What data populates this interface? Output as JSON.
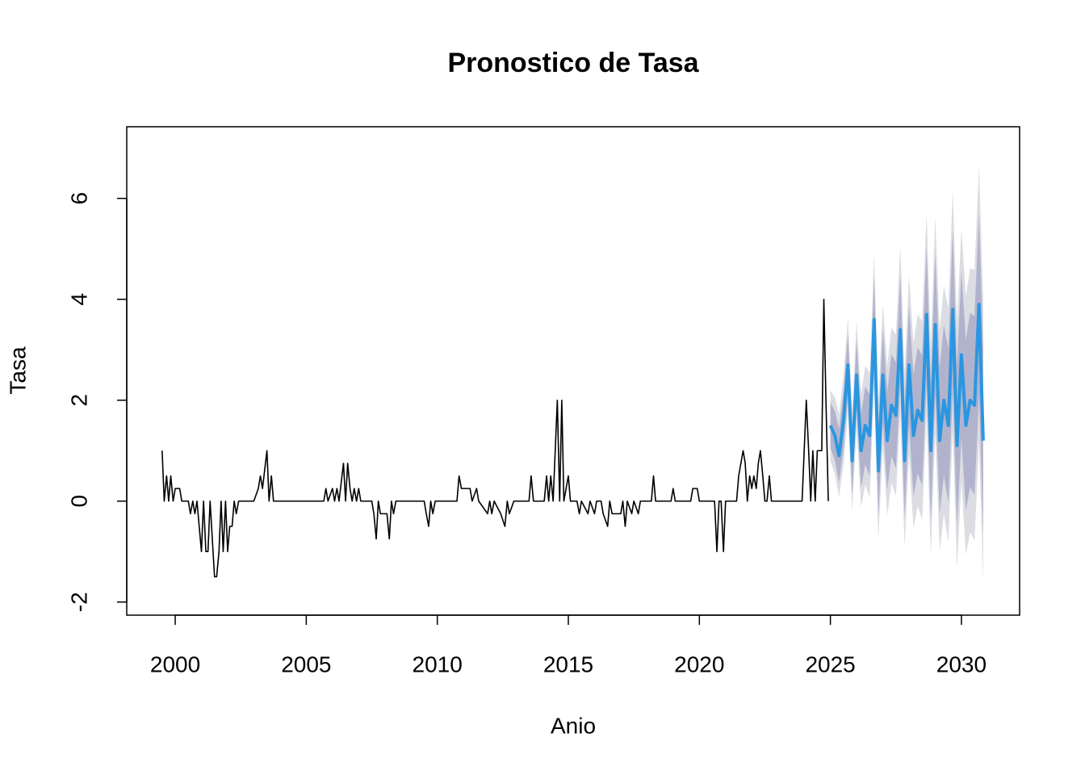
{
  "chart_data": {
    "type": "line",
    "title": "Pronostico de Tasa",
    "x_label": "Anio",
    "y_label": "Tasa",
    "xlim": [
      1998.15,
      2032.22
    ],
    "ylim": [
      -2.26,
      7.42
    ],
    "xticks": [
      2000,
      2005,
      2010,
      2015,
      2020,
      2025,
      2030
    ],
    "yticks": [
      -2,
      0,
      2,
      4,
      6
    ],
    "band_colors": [
      "#dcdce3",
      "#b1b3cd"
    ],
    "series": [
      {
        "color": "#000000",
        "x": [
          1999.5,
          1999.58,
          1999.67,
          1999.75,
          1999.83,
          1999.92,
          2000,
          2000.17,
          2000.25,
          2000.5,
          2000.58,
          2000.67,
          2000.75,
          2000.83,
          2001,
          2001.08,
          2001.17,
          2001.25,
          2001.33,
          2001.5,
          2001.58,
          2001.67,
          2001.75,
          2001.83,
          2001.92,
          2002,
          2002.08,
          2002.17,
          2002.25,
          2002.33,
          2002.42,
          2003,
          2003.17,
          2003.25,
          2003.33,
          2003.5,
          2003.58,
          2003.67,
          2003.75,
          2005.67,
          2005.75,
          2005.83,
          2006,
          2006.08,
          2006.17,
          2006.25,
          2006.42,
          2006.5,
          2006.58,
          2006.67,
          2006.75,
          2006.83,
          2006.92,
          2007,
          2007.08,
          2007.5,
          2007.58,
          2007.67,
          2007.75,
          2007.83,
          2008.08,
          2008.17,
          2008.25,
          2008.33,
          2008.42,
          2009.5,
          2009.58,
          2009.67,
          2009.75,
          2009.83,
          2009.92,
          2010.75,
          2010.83,
          2010.92,
          2011.25,
          2011.33,
          2011.5,
          2011.58,
          2011.92,
          2012,
          2012.08,
          2012.17,
          2012.42,
          2012.58,
          2012.67,
          2012.75,
          2012.92,
          2013.5,
          2013.58,
          2013.67,
          2014.08,
          2014.17,
          2014.25,
          2014.33,
          2014.42,
          2014.58,
          2014.67,
          2014.75,
          2014.83,
          2015,
          2015.08,
          2015.33,
          2015.42,
          2015.5,
          2015.75,
          2015.83,
          2016,
          2016.08,
          2016.25,
          2016.33,
          2016.5,
          2016.58,
          2016.67,
          2017,
          2017.08,
          2017.17,
          2017.25,
          2017.42,
          2017.5,
          2017.67,
          2017.75,
          2018.17,
          2018.25,
          2018.33,
          2018.92,
          2019,
          2019.08,
          2019.67,
          2019.75,
          2019.92,
          2020,
          2020.58,
          2020.67,
          2020.75,
          2020.83,
          2020.92,
          2021,
          2021.42,
          2021.5,
          2021.67,
          2021.75,
          2021.83,
          2021.92,
          2022,
          2022.08,
          2022.17,
          2022.25,
          2022.33,
          2022.42,
          2022.5,
          2022.58,
          2022.67,
          2022.75,
          2023.92,
          2024,
          2024.08,
          2024.17,
          2024.25,
          2024.33,
          2024.42,
          2024.5,
          2024.58,
          2024.67,
          2024.75,
          2024.83,
          2024.92
        ],
        "values": [
          1,
          0,
          0.5,
          0,
          0.5,
          0,
          0.25,
          0.25,
          0,
          0,
          -0.25,
          0,
          -0.25,
          0,
          -1,
          0,
          -1,
          -1,
          0,
          -1.5,
          -1.5,
          -1,
          0,
          -1,
          0,
          -1,
          -0.5,
          -0.5,
          0,
          -0.25,
          0,
          0,
          0.25,
          0.5,
          0.25,
          1,
          0,
          0.5,
          0,
          0,
          0.25,
          0,
          0.25,
          0,
          0.25,
          0,
          0.75,
          0,
          0.75,
          0.25,
          0,
          0.25,
          0,
          0.25,
          0,
          0,
          -0.25,
          -0.75,
          0,
          -0.25,
          -0.25,
          -0.75,
          0,
          -0.25,
          0,
          0,
          -0.25,
          -0.5,
          0,
          -0.25,
          0,
          0,
          0.5,
          0.25,
          0.25,
          0,
          0.25,
          0,
          -0.25,
          0,
          -0.25,
          0,
          -0.25,
          -0.5,
          0,
          -0.25,
          0,
          0,
          0.5,
          0,
          0,
          0.5,
          0,
          0.5,
          0,
          2,
          0,
          2,
          0,
          0.5,
          0,
          0,
          -0.25,
          0,
          -0.25,
          0,
          -0.25,
          0,
          0,
          -0.25,
          -0.5,
          0,
          -0.25,
          -0.25,
          0,
          -0.5,
          0,
          -0.25,
          0,
          -0.25,
          0,
          0,
          0.5,
          0,
          0,
          0.25,
          0,
          0,
          0.25,
          0.25,
          0,
          0,
          -1,
          0,
          0,
          -1,
          0,
          0,
          0.5,
          1,
          0.75,
          0,
          0.5,
          0.25,
          0.5,
          0.25,
          0.75,
          1,
          0.5,
          0,
          0,
          0.5,
          0,
          0,
          1,
          2,
          1,
          0,
          1,
          0,
          1,
          1,
          1,
          4,
          2,
          0
        ]
      },
      {
        "color": "#2b96e0",
        "x": [
          2025,
          2025.17,
          2025.33,
          2025.5,
          2025.67,
          2025.83,
          2026,
          2026.17,
          2026.33,
          2026.5,
          2026.67,
          2026.83,
          2027,
          2027.17,
          2027.33,
          2027.5,
          2027.67,
          2027.83,
          2028,
          2028.17,
          2028.33,
          2028.5,
          2028.67,
          2028.83,
          2029,
          2029.17,
          2029.33,
          2029.5,
          2029.67,
          2029.83,
          2030,
          2030.17,
          2030.33,
          2030.5,
          2030.67,
          2030.83
        ],
        "values": [
          1.5,
          1.3,
          0.9,
          1.6,
          2.7,
          0.8,
          2.5,
          1.0,
          1.5,
          1.3,
          3.6,
          0.6,
          2.5,
          1.2,
          1.9,
          1.7,
          3.4,
          0.8,
          2.7,
          1.3,
          1.8,
          1.6,
          3.7,
          1.0,
          3.5,
          1.2,
          2.0,
          1.5,
          3.8,
          1.1,
          2.9,
          1.5,
          2.0,
          1.9,
          3.9,
          1.2
        ],
        "lower95": [
          0.8,
          0.54,
          0.08,
          0.72,
          1.76,
          -0.2,
          1.44,
          -0.12,
          0.32,
          0.06,
          2.3,
          -0.76,
          1.08,
          -0.28,
          0.36,
          0.1,
          1.74,
          -0.92,
          0.92,
          -0.54,
          -0.1,
          -0.36,
          1.68,
          -1.08,
          1.36,
          -1.0,
          -0.26,
          -0.82,
          1.42,
          -1.34,
          0.4,
          -1.06,
          -0.62,
          -0.78,
          1.16,
          -1.6
        ],
        "upper95": [
          2.2,
          2.06,
          1.72,
          2.48,
          3.64,
          1.8,
          3.56,
          2.12,
          2.68,
          2.54,
          4.9,
          1.96,
          3.92,
          2.68,
          3.44,
          3.3,
          5.06,
          2.52,
          4.48,
          3.14,
          3.7,
          3.56,
          5.72,
          3.08,
          5.64,
          3.4,
          4.26,
          3.82,
          6.18,
          3.54,
          5.4,
          4.06,
          4.62,
          4.58,
          6.64,
          4.0
        ],
        "lower80": [
          1.05,
          0.81,
          0.37,
          1.03,
          2.09,
          0.15,
          1.81,
          0.27,
          0.73,
          0.49,
          2.75,
          -0.29,
          1.57,
          0.23,
          0.89,
          0.65,
          2.31,
          -0.33,
          1.53,
          0.09,
          0.55,
          0.31,
          2.37,
          -0.37,
          2.09,
          -0.25,
          0.51,
          -0.03,
          2.23,
          -0.51,
          1.25,
          -0.19,
          0.27,
          0.13,
          2.09,
          -0.65
        ],
        "upper80": [
          1.95,
          1.79,
          1.43,
          2.17,
          3.31,
          1.45,
          3.19,
          1.73,
          2.27,
          2.11,
          4.45,
          1.49,
          3.43,
          2.17,
          2.91,
          2.75,
          4.49,
          1.93,
          3.87,
          2.51,
          3.05,
          2.89,
          5.03,
          2.37,
          4.91,
          2.65,
          3.49,
          3.03,
          5.37,
          2.71,
          4.55,
          3.19,
          3.73,
          3.67,
          5.71,
          3.05
        ]
      }
    ]
  }
}
